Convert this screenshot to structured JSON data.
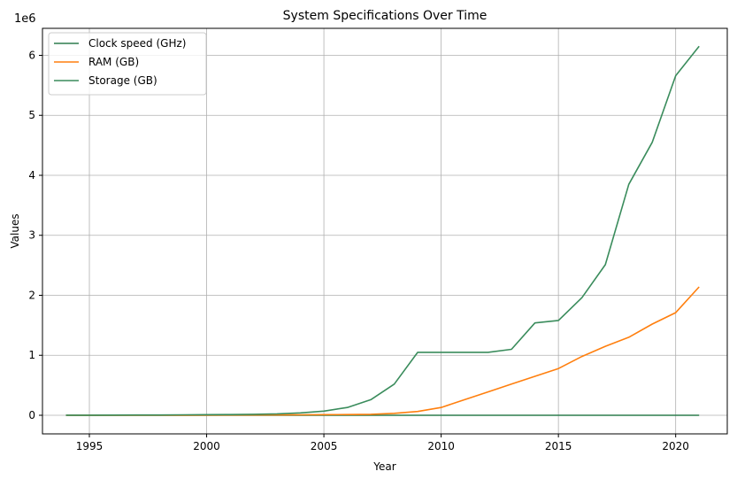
{
  "chart_data": {
    "type": "line",
    "title": "System Specifications Over Time",
    "xlabel": "Year",
    "ylabel": "Values",
    "offset_label": "1e6",
    "xlim": [
      1993,
      2022.2
    ],
    "ylim": [
      -310000,
      6450000
    ],
    "x_ticks": [
      1995,
      2000,
      2005,
      2010,
      2015,
      2020
    ],
    "x_tick_labels": [
      "1995",
      "2000",
      "2005",
      "2010",
      "2015",
      "2020"
    ],
    "y_ticks": [
      0,
      1000000,
      2000000,
      3000000,
      4000000,
      5000000,
      6000000
    ],
    "y_tick_labels": [
      "0",
      "1",
      "2",
      "3",
      "4",
      "5",
      "6"
    ],
    "grid": true,
    "legend_position": "top-left",
    "x": [
      1994,
      1995,
      1996,
      1997,
      1998,
      1999,
      2000,
      2001,
      2002,
      2003,
      2004,
      2005,
      2006,
      2007,
      2008,
      2009,
      2010,
      2011,
      2012,
      2013,
      2014,
      2015,
      2016,
      2017,
      2018,
      2019,
      2020,
      2021
    ],
    "series": [
      {
        "name": "Clock speed (GHz)",
        "color": "#2e7d4f",
        "values": [
          0.1,
          0.1,
          0.15,
          0.2,
          0.3,
          0.5,
          1.0,
          1.5,
          2.0,
          2.5,
          3.0,
          3.2,
          3.4,
          3.5,
          3.6,
          3.7,
          3.8,
          3.9,
          4.0,
          4.0,
          4.1,
          4.2,
          4.3,
          4.4,
          4.5,
          4.7,
          4.9,
          5.0
        ]
      },
      {
        "name": "RAM (GB)",
        "color": "#ff7f0e",
        "values": [
          100,
          200,
          400,
          800,
          1500,
          2000,
          3000,
          4000,
          5000,
          6000,
          8000,
          10000,
          12000,
          16000,
          32000,
          64000,
          130000,
          260000,
          390000,
          520000,
          650000,
          780000,
          980000,
          1150000,
          1300000,
          1520000,
          1710000,
          2140000
        ]
      },
      {
        "name": "Storage (GB)",
        "color": "#3a8c5c",
        "values": [
          1000,
          2000,
          3000,
          4000,
          5000,
          7000,
          10000,
          12000,
          16000,
          24000,
          40000,
          70000,
          130000,
          260000,
          520000,
          1050000,
          1050000,
          1050000,
          1050000,
          1100000,
          1540000,
          1580000,
          1960000,
          2510000,
          3850000,
          4550000,
          5660000,
          6150000
        ]
      }
    ]
  }
}
